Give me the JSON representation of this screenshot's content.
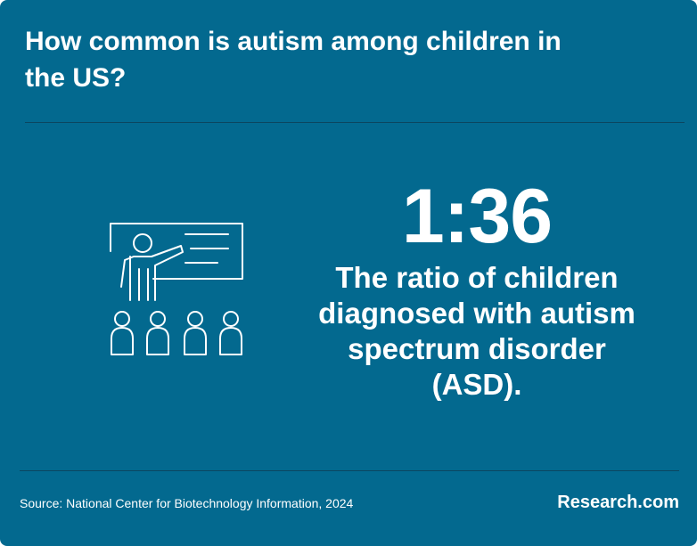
{
  "title": "How common is autism among children in the US?",
  "stat": {
    "ratio": "1:36",
    "description": "The ratio of children diagnosed with autism spectrum disorder (ASD)."
  },
  "illustration": {
    "icon": "teacher-classroom-icon"
  },
  "footer": {
    "source": "Source: National Center for Biotechnology Information, 2024",
    "brand": "Research.com"
  },
  "colors": {
    "background": "#03698f",
    "text": "#ffffff",
    "rule": "#0b4660"
  }
}
